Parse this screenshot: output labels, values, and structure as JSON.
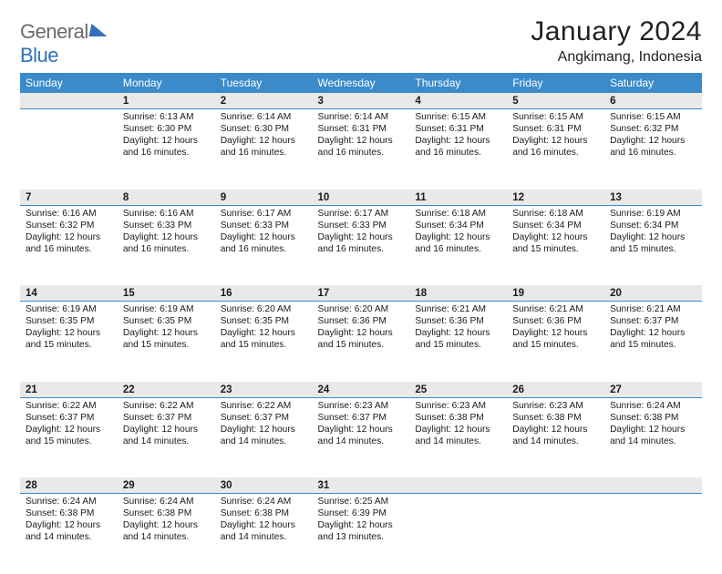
{
  "logo": {
    "general": "General",
    "blue": "Blue"
  },
  "title": "January 2024",
  "location": "Angkimang, Indonesia",
  "colors": {
    "header_bg": "#3b8bca",
    "header_text": "#ffffff",
    "daynum_bg": "#e9e9e9",
    "daynum_border": "#3b8bca",
    "text": "#1a1a1a"
  },
  "layout": {
    "title_fontsize": 30,
    "location_fontsize": 16,
    "dow_fontsize": 12,
    "cell_fontsize": 10.2,
    "daynum_fontsize": 11.5
  },
  "days_of_week": [
    "Sunday",
    "Monday",
    "Tuesday",
    "Wednesday",
    "Thursday",
    "Friday",
    "Saturday"
  ],
  "weeks": [
    [
      null,
      {
        "n": "1",
        "sr": "6:13 AM",
        "ss": "6:30 PM",
        "dl": "12 hours and 16 minutes."
      },
      {
        "n": "2",
        "sr": "6:14 AM",
        "ss": "6:30 PM",
        "dl": "12 hours and 16 minutes."
      },
      {
        "n": "3",
        "sr": "6:14 AM",
        "ss": "6:31 PM",
        "dl": "12 hours and 16 minutes."
      },
      {
        "n": "4",
        "sr": "6:15 AM",
        "ss": "6:31 PM",
        "dl": "12 hours and 16 minutes."
      },
      {
        "n": "5",
        "sr": "6:15 AM",
        "ss": "6:31 PM",
        "dl": "12 hours and 16 minutes."
      },
      {
        "n": "6",
        "sr": "6:15 AM",
        "ss": "6:32 PM",
        "dl": "12 hours and 16 minutes."
      }
    ],
    [
      {
        "n": "7",
        "sr": "6:16 AM",
        "ss": "6:32 PM",
        "dl": "12 hours and 16 minutes."
      },
      {
        "n": "8",
        "sr": "6:16 AM",
        "ss": "6:33 PM",
        "dl": "12 hours and 16 minutes."
      },
      {
        "n": "9",
        "sr": "6:17 AM",
        "ss": "6:33 PM",
        "dl": "12 hours and 16 minutes."
      },
      {
        "n": "10",
        "sr": "6:17 AM",
        "ss": "6:33 PM",
        "dl": "12 hours and 16 minutes."
      },
      {
        "n": "11",
        "sr": "6:18 AM",
        "ss": "6:34 PM",
        "dl": "12 hours and 16 minutes."
      },
      {
        "n": "12",
        "sr": "6:18 AM",
        "ss": "6:34 PM",
        "dl": "12 hours and 15 minutes."
      },
      {
        "n": "13",
        "sr": "6:19 AM",
        "ss": "6:34 PM",
        "dl": "12 hours and 15 minutes."
      }
    ],
    [
      {
        "n": "14",
        "sr": "6:19 AM",
        "ss": "6:35 PM",
        "dl": "12 hours and 15 minutes."
      },
      {
        "n": "15",
        "sr": "6:19 AM",
        "ss": "6:35 PM",
        "dl": "12 hours and 15 minutes."
      },
      {
        "n": "16",
        "sr": "6:20 AM",
        "ss": "6:35 PM",
        "dl": "12 hours and 15 minutes."
      },
      {
        "n": "17",
        "sr": "6:20 AM",
        "ss": "6:36 PM",
        "dl": "12 hours and 15 minutes."
      },
      {
        "n": "18",
        "sr": "6:21 AM",
        "ss": "6:36 PM",
        "dl": "12 hours and 15 minutes."
      },
      {
        "n": "19",
        "sr": "6:21 AM",
        "ss": "6:36 PM",
        "dl": "12 hours and 15 minutes."
      },
      {
        "n": "20",
        "sr": "6:21 AM",
        "ss": "6:37 PM",
        "dl": "12 hours and 15 minutes."
      }
    ],
    [
      {
        "n": "21",
        "sr": "6:22 AM",
        "ss": "6:37 PM",
        "dl": "12 hours and 15 minutes."
      },
      {
        "n": "22",
        "sr": "6:22 AM",
        "ss": "6:37 PM",
        "dl": "12 hours and 14 minutes."
      },
      {
        "n": "23",
        "sr": "6:22 AM",
        "ss": "6:37 PM",
        "dl": "12 hours and 14 minutes."
      },
      {
        "n": "24",
        "sr": "6:23 AM",
        "ss": "6:37 PM",
        "dl": "12 hours and 14 minutes."
      },
      {
        "n": "25",
        "sr": "6:23 AM",
        "ss": "6:38 PM",
        "dl": "12 hours and 14 minutes."
      },
      {
        "n": "26",
        "sr": "6:23 AM",
        "ss": "6:38 PM",
        "dl": "12 hours and 14 minutes."
      },
      {
        "n": "27",
        "sr": "6:24 AM",
        "ss": "6:38 PM",
        "dl": "12 hours and 14 minutes."
      }
    ],
    [
      {
        "n": "28",
        "sr": "6:24 AM",
        "ss": "6:38 PM",
        "dl": "12 hours and 14 minutes."
      },
      {
        "n": "29",
        "sr": "6:24 AM",
        "ss": "6:38 PM",
        "dl": "12 hours and 14 minutes."
      },
      {
        "n": "30",
        "sr": "6:24 AM",
        "ss": "6:38 PM",
        "dl": "12 hours and 14 minutes."
      },
      {
        "n": "31",
        "sr": "6:25 AM",
        "ss": "6:39 PM",
        "dl": "12 hours and 13 minutes."
      },
      null,
      null,
      null
    ]
  ],
  "labels": {
    "sunrise": "Sunrise:",
    "sunset": "Sunset:",
    "daylight": "Daylight:"
  }
}
